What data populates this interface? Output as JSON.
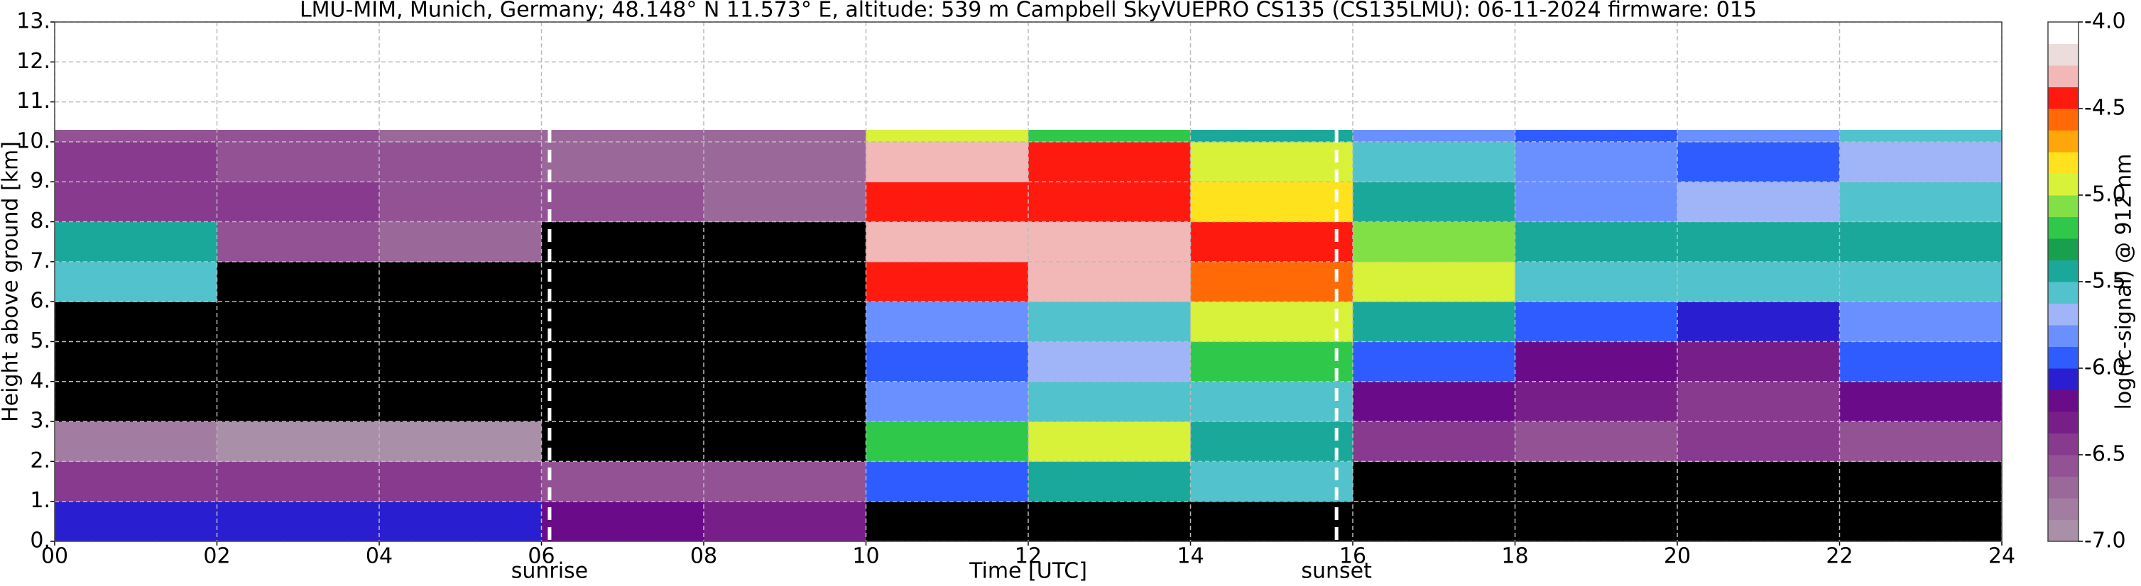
{
  "chart_data": {
    "type": "heatmap",
    "title": "LMU-MIM, Munich, Germany; 48.148° N 11.573° E, altitude: 539 m    Campbell SkyVUEPRO CS135 (CS135LMU): 06-11-2024    firmware: 015",
    "x_label": "Time [UTC]",
    "y_label": "Height above ground [km]",
    "colorbar_label": "log(rc-signal) @ 912 nm",
    "xlim": [
      0,
      24
    ],
    "xticks": [
      {
        "value": 0,
        "label": "00"
      },
      {
        "value": 2,
        "label": "02"
      },
      {
        "value": 4,
        "label": "04"
      },
      {
        "value": 6,
        "label": "06"
      },
      {
        "value": 8,
        "label": "08"
      },
      {
        "value": 10,
        "label": "10"
      },
      12,
      14,
      16,
      18,
      20,
      22,
      24
    ],
    "ylim": [
      0,
      13
    ],
    "yticks": [
      {
        "value": 0,
        "label": "0."
      },
      {
        "value": 1,
        "label": "1."
      },
      {
        "value": 2,
        "label": "2."
      },
      {
        "value": 3,
        "label": "3."
      },
      {
        "value": 4,
        "label": "4."
      },
      {
        "value": 5,
        "label": "5."
      },
      {
        "value": 6,
        "label": "6."
      },
      {
        "value": 7,
        "label": "7."
      },
      {
        "value": 8,
        "label": "8."
      },
      {
        "value": 9,
        "label": "9."
      },
      {
        "value": 10,
        "label": "10."
      },
      {
        "value": 11,
        "label": "11."
      },
      {
        "value": 12,
        "label": "12."
      },
      {
        "value": 13,
        "label": "13."
      }
    ],
    "clim": [
      -7,
      -4
    ],
    "cticks": [
      {
        "value": -7,
        "label": "-7.0"
      },
      {
        "value": -6.5,
        "label": "-6.5"
      },
      {
        "value": -6,
        "label": "-6.0"
      },
      {
        "value": -5.5,
        "label": "-5.5"
      },
      {
        "value": -5,
        "label": "-5.0"
      },
      {
        "value": -4.5,
        "label": "-4.5"
      },
      {
        "value": -4,
        "label": "-4.0"
      }
    ],
    "colormap": [
      "#a98fa8",
      "#a37ca1",
      "#9b689a",
      "#925294",
      "#873a8e",
      "#781e88",
      "#6a0c8a",
      "#2a1fd0",
      "#2f5cff",
      "#6a90ff",
      "#a0b4f8",
      "#52c2cc",
      "#1aa89a",
      "#18a04e",
      "#30c84a",
      "#80e046",
      "#d8f23a",
      "#ffe21e",
      "#ffa60a",
      "#ff6a06",
      "#ff1a10",
      "#f2b8b8",
      "#ecdcdc",
      "#ffffff"
    ],
    "under_color": "#000000",
    "grid": true,
    "x_bins": [
      0,
      2,
      4,
      6,
      8,
      10,
      12,
      14,
      16,
      18,
      20,
      22,
      24
    ],
    "y_bins": [
      0,
      1,
      2,
      3,
      4,
      5,
      6,
      7,
      8,
      9,
      10,
      10.3
    ],
    "z": [
      [
        -6.1,
        -6.1,
        -6.1,
        -6.2,
        -6.3,
        -7.5,
        -7.5,
        -7.5,
        -7.5,
        -7.5,
        -7.5,
        -7.5
      ],
      [
        -6.4,
        -6.4,
        -6.5,
        -6.6,
        -6.6,
        -6.0,
        -5.5,
        -5.6,
        -7.5,
        -7.5,
        -7.5,
        -7.5
      ],
      [
        -6.8,
        -6.9,
        -6.9,
        -7.5,
        -7.5,
        -5.2,
        -5.0,
        -5.4,
        -6.5,
        -6.6,
        -6.5,
        -6.6
      ],
      [
        -7.5,
        -7.5,
        -7.5,
        -7.5,
        -7.5,
        -5.8,
        -5.6,
        -5.6,
        -6.2,
        -6.3,
        -6.4,
        -6.2
      ],
      [
        -7.5,
        -7.5,
        -7.5,
        -7.5,
        -7.5,
        -5.9,
        -5.7,
        -5.2,
        -6.0,
        -6.2,
        -6.3,
        -5.9
      ],
      [
        -7.5,
        -7.5,
        -7.5,
        -7.5,
        -7.5,
        -5.8,
        -5.6,
        -5.0,
        -5.4,
        -6.0,
        -6.1,
        -5.8
      ],
      [
        -5.6,
        -7.5,
        -7.5,
        -7.5,
        -7.5,
        -4.4,
        -4.3,
        -4.6,
        -5.0,
        -5.6,
        -5.6,
        -5.6
      ],
      [
        -5.4,
        -6.6,
        -6.7,
        -7.5,
        -7.5,
        -4.3,
        -4.3,
        -4.5,
        -5.1,
        -5.5,
        -5.4,
        -5.5
      ],
      [
        -6.5,
        -6.5,
        -6.6,
        -6.6,
        -6.7,
        -4.4,
        -4.5,
        -4.8,
        -5.4,
        -5.8,
        -5.7,
        -5.6
      ],
      [
        -6.5,
        -6.6,
        -6.6,
        -6.7,
        -6.7,
        -4.3,
        -4.5,
        -4.9,
        -5.6,
        -5.8,
        -5.9,
        -5.7
      ],
      [
        -6.6,
        -6.6,
        -6.7,
        -6.7,
        -6.7,
        -5.0,
        -5.2,
        -5.4,
        -5.8,
        -5.9,
        -5.8,
        -5.6
      ]
    ],
    "annotations": [
      {
        "x": 6.1,
        "label": "sunrise"
      },
      {
        "x": 15.8,
        "label": "sunset"
      }
    ]
  }
}
